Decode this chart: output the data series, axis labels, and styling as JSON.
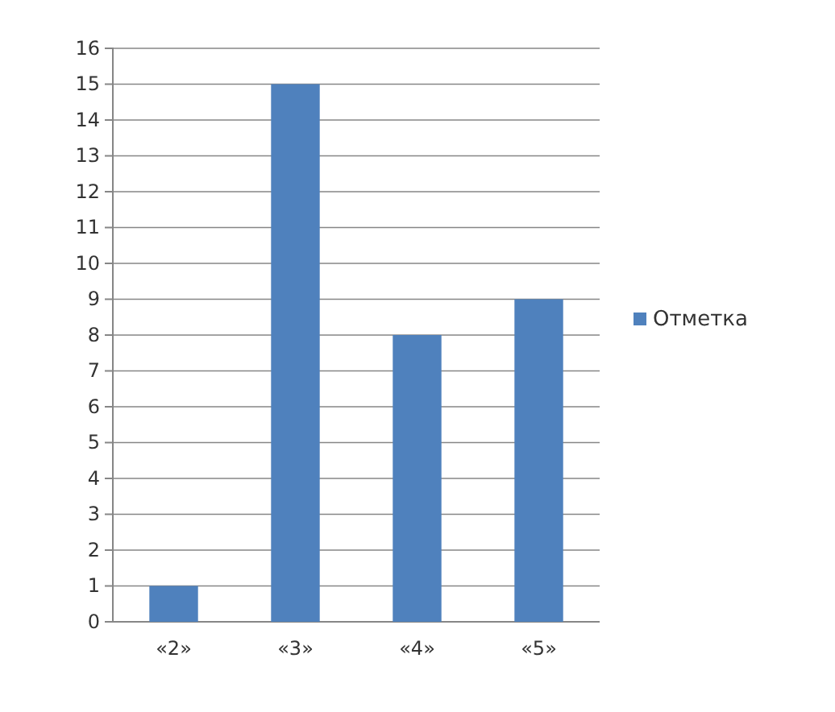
{
  "chart_data": {
    "type": "bar",
    "categories": [
      "«2»",
      "«3»",
      "«4»",
      "«5»"
    ],
    "series": [
      {
        "name": "Отметка",
        "color": "#4f81bd",
        "values": [
          1,
          15,
          8,
          9
        ]
      }
    ],
    "ylim": [
      0,
      16
    ],
    "yticks": [
      0,
      1,
      2,
      3,
      4,
      5,
      6,
      7,
      8,
      9,
      10,
      11,
      12,
      13,
      14,
      15,
      16
    ],
    "grid": "y",
    "legend": "right"
  }
}
